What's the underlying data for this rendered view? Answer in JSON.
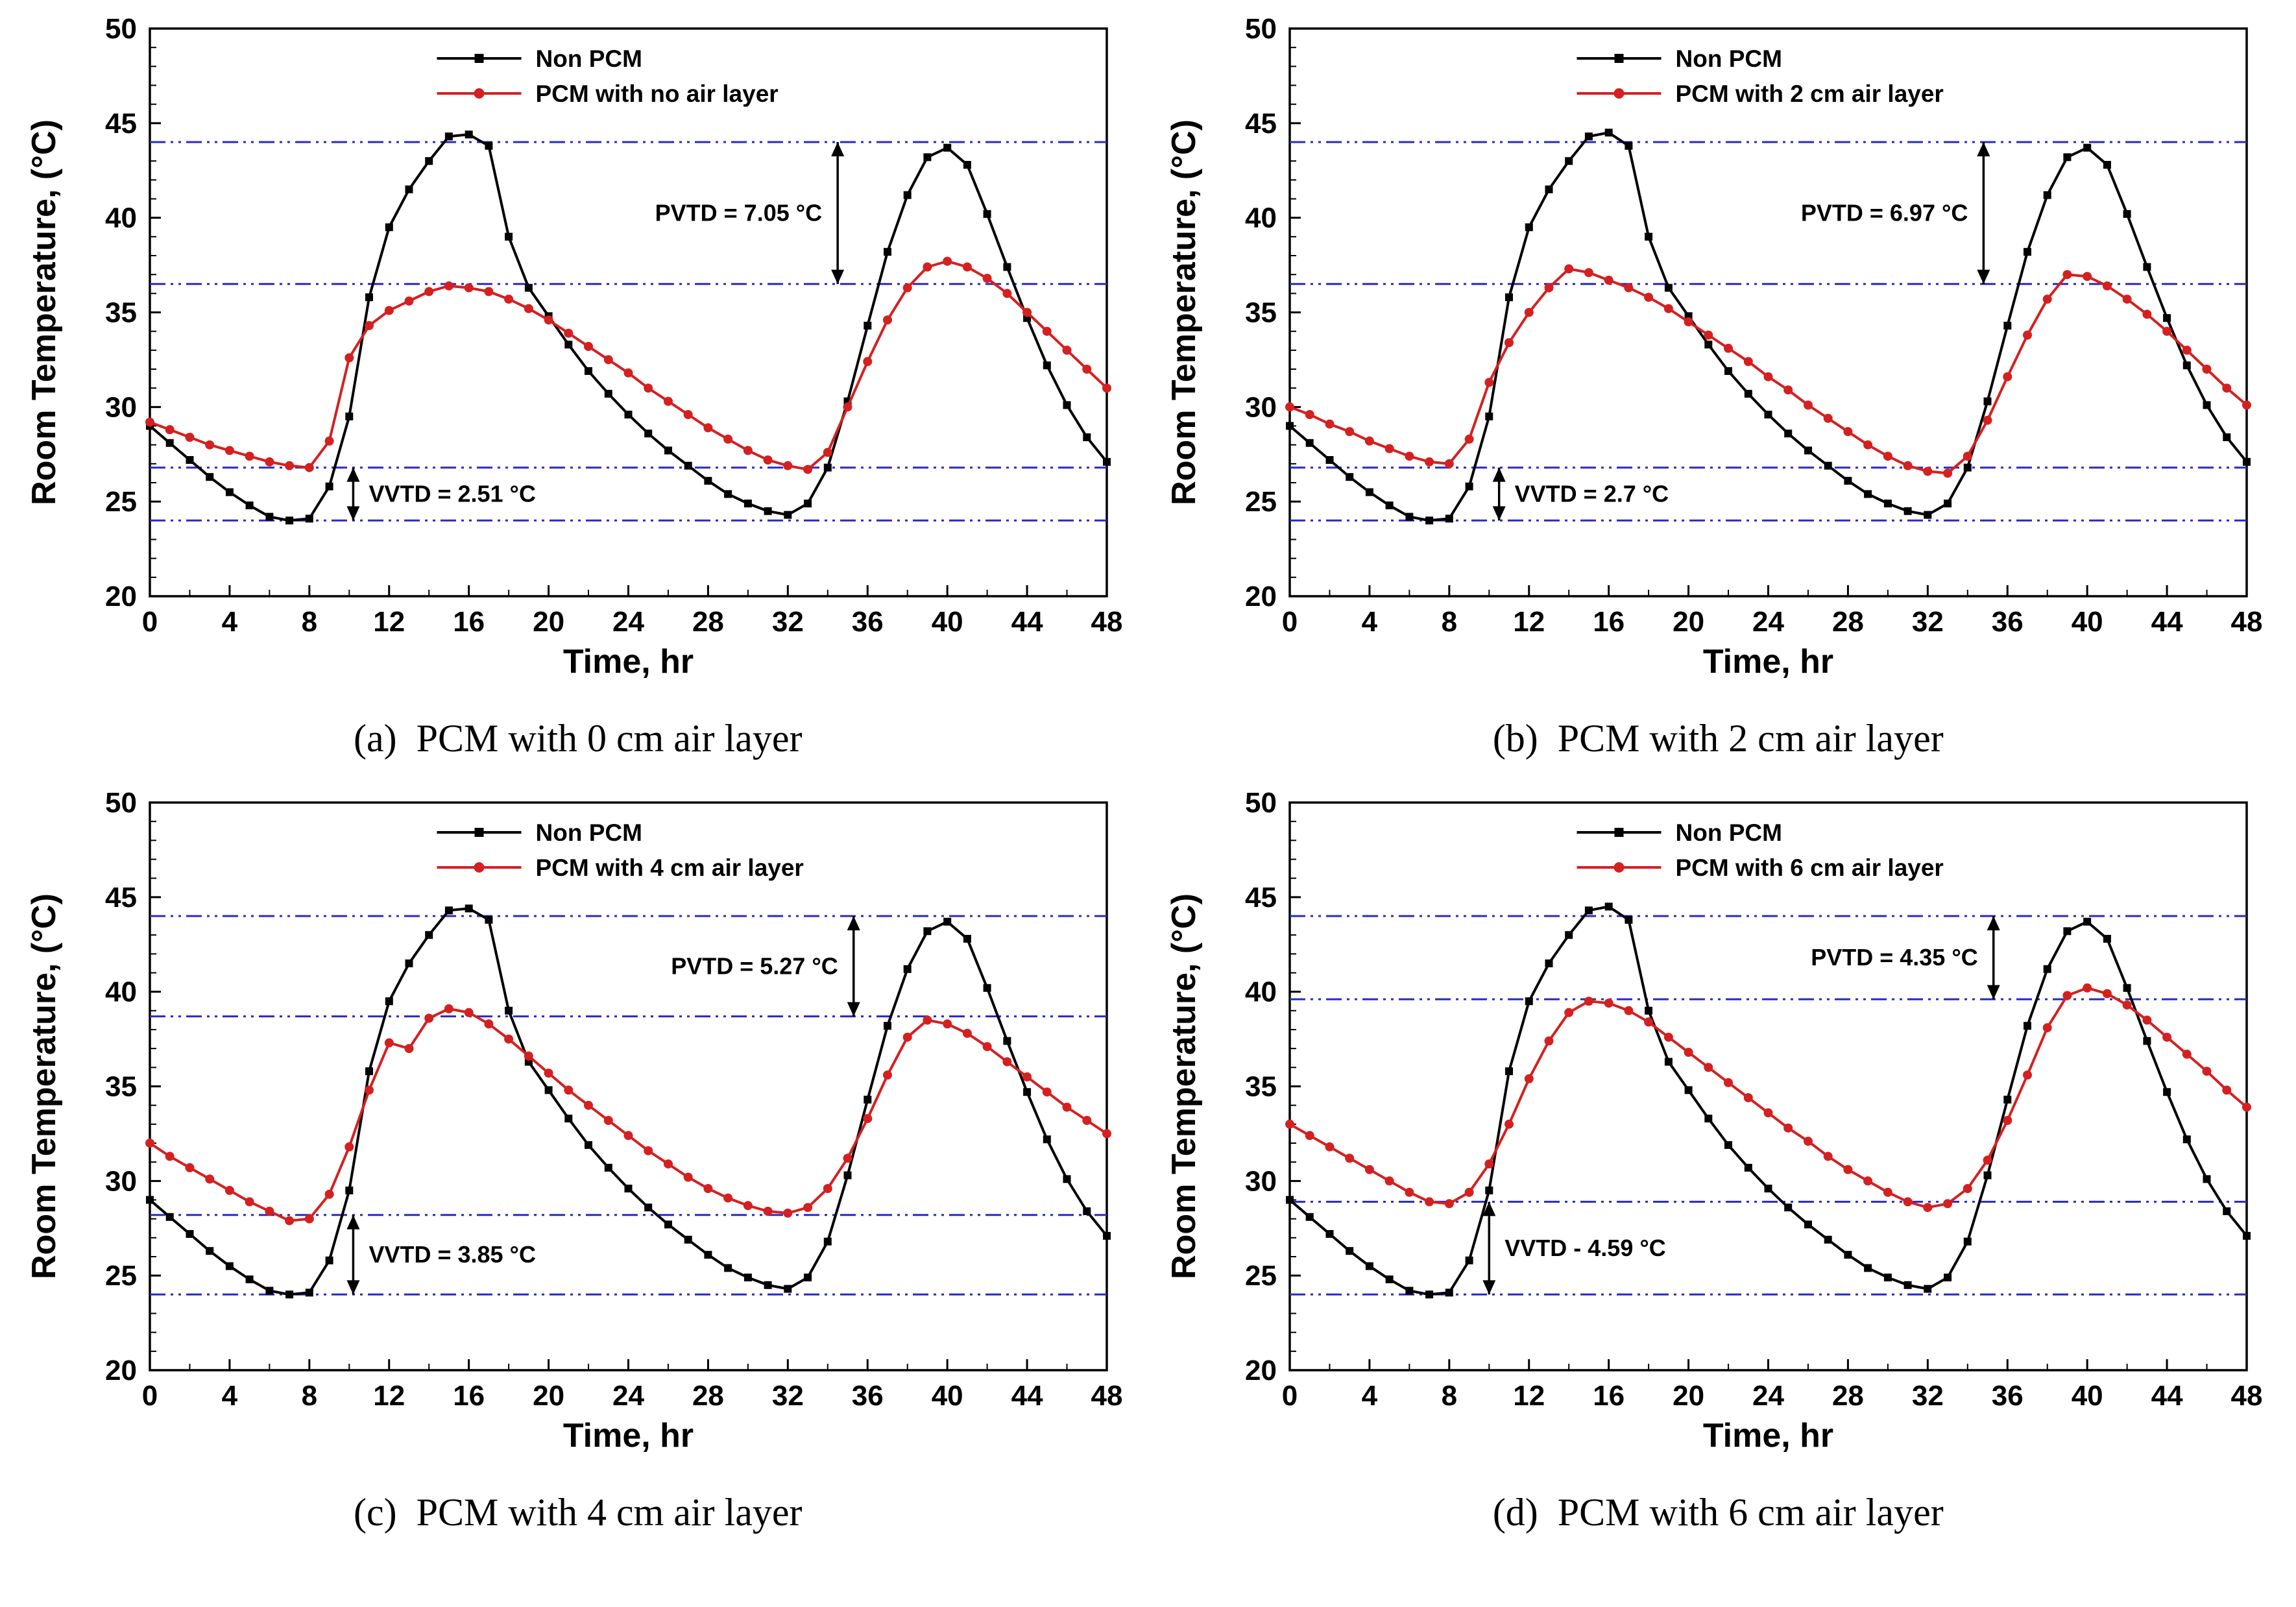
{
  "page": {
    "background": "#ffffff"
  },
  "chart_data": [
    {
      "type": "line",
      "caption": "(a)  PCM with 0 cm air layer",
      "xlabel": "Time, hr",
      "ylabel": "Room Temperature, (°C)",
      "xlim": [
        0,
        48
      ],
      "ylim": [
        20,
        50
      ],
      "xticks_major": 4,
      "xticks_minor": 2,
      "yticks_major": 5,
      "yticks_minor": 1,
      "legend_position": "top-center",
      "grid": false,
      "colors": {
        "non_pcm": "#000000",
        "pcm": "#d42020",
        "reference": "#2929c8"
      },
      "x_step": 1,
      "series": [
        {
          "name": "Non PCM",
          "marker": "square",
          "color": "#000000",
          "values": [
            29.0,
            28.1,
            27.2,
            26.3,
            25.5,
            24.8,
            24.2,
            24.0,
            24.1,
            25.8,
            29.5,
            35.8,
            39.5,
            41.5,
            43.0,
            44.3,
            44.4,
            43.8,
            39.0,
            36.3,
            34.8,
            33.3,
            31.9,
            30.7,
            29.6,
            28.6,
            27.7,
            26.9,
            26.1,
            25.4,
            24.9,
            24.5,
            24.3,
            24.9,
            26.8,
            30.3,
            34.3,
            38.2,
            41.2,
            43.2,
            43.7,
            42.8,
            40.2,
            37.4,
            34.7,
            32.2,
            30.1,
            28.4,
            27.1
          ]
        },
        {
          "name": "PCM with no air layer",
          "marker": "circle",
          "color": "#d42020",
          "values": [
            29.2,
            28.8,
            28.4,
            28.0,
            27.7,
            27.4,
            27.1,
            26.9,
            26.8,
            28.2,
            32.6,
            34.3,
            35.1,
            35.6,
            36.1,
            36.4,
            36.3,
            36.1,
            35.7,
            35.2,
            34.6,
            33.9,
            33.2,
            32.5,
            31.8,
            31.0,
            30.3,
            29.6,
            28.9,
            28.3,
            27.7,
            27.2,
            26.9,
            26.7,
            27.6,
            30.0,
            32.4,
            34.6,
            36.3,
            37.4,
            37.7,
            37.4,
            36.8,
            36.0,
            35.0,
            34.0,
            33.0,
            32.0,
            31.0
          ]
        }
      ],
      "reference_lines": [
        44.0,
        36.5,
        26.8,
        24.0
      ],
      "annotations": [
        {
          "id": "pvtd",
          "label": "PVTD = 7.05 °C",
          "arrow_x": 34.5,
          "y_from": 36.5,
          "y_to": 44.0,
          "label_side": "left"
        },
        {
          "id": "vvtd",
          "label": "VVTD = 2.51 °C",
          "arrow_x": 10.2,
          "y_from": 24.0,
          "y_to": 26.8,
          "label_side": "right"
        }
      ]
    },
    {
      "type": "line",
      "caption": "(b)  PCM with 2 cm air layer",
      "xlabel": "Time, hr",
      "ylabel": "Room Temperature, (°C)",
      "xlim": [
        0,
        48
      ],
      "ylim": [
        20,
        50
      ],
      "xticks_major": 4,
      "xticks_minor": 2,
      "yticks_major": 5,
      "yticks_minor": 1,
      "legend_position": "top-center",
      "grid": false,
      "colors": {
        "non_pcm": "#000000",
        "pcm": "#d42020",
        "reference": "#2929c8"
      },
      "x_step": 1,
      "series": [
        {
          "name": "Non PCM",
          "marker": "square",
          "color": "#000000",
          "values": [
            29.0,
            28.1,
            27.2,
            26.3,
            25.5,
            24.8,
            24.2,
            24.0,
            24.1,
            25.8,
            29.5,
            35.8,
            39.5,
            41.5,
            43.0,
            44.3,
            44.5,
            43.8,
            39.0,
            36.3,
            34.8,
            33.3,
            31.9,
            30.7,
            29.6,
            28.6,
            27.7,
            26.9,
            26.1,
            25.4,
            24.9,
            24.5,
            24.3,
            24.9,
            26.8,
            30.3,
            34.3,
            38.2,
            41.2,
            43.2,
            43.7,
            42.8,
            40.2,
            37.4,
            34.7,
            32.2,
            30.1,
            28.4,
            27.1
          ]
        },
        {
          "name": "PCM with 2 cm air layer",
          "marker": "circle",
          "color": "#d42020",
          "values": [
            30.0,
            29.6,
            29.1,
            28.7,
            28.2,
            27.8,
            27.4,
            27.1,
            27.0,
            28.3,
            31.3,
            33.4,
            35.0,
            36.3,
            37.3,
            37.1,
            36.7,
            36.3,
            35.8,
            35.2,
            34.5,
            33.8,
            33.1,
            32.4,
            31.6,
            30.9,
            30.1,
            29.4,
            28.7,
            28.0,
            27.4,
            26.9,
            26.6,
            26.5,
            27.4,
            29.3,
            31.6,
            33.8,
            35.7,
            37.0,
            36.9,
            36.4,
            35.7,
            34.9,
            34.0,
            33.0,
            32.0,
            31.0,
            30.1
          ]
        }
      ],
      "reference_lines": [
        44.0,
        36.5,
        26.8,
        24.0
      ],
      "annotations": [
        {
          "id": "pvtd",
          "label": "PVTD = 6.97 °C",
          "arrow_x": 34.8,
          "y_from": 36.5,
          "y_to": 44.0,
          "label_side": "left"
        },
        {
          "id": "vvtd",
          "label": "VVTD = 2.7 °C",
          "arrow_x": 10.5,
          "y_from": 24.0,
          "y_to": 26.8,
          "label_side": "right"
        }
      ]
    },
    {
      "type": "line",
      "caption": "(c)  PCM with 4 cm air layer",
      "xlabel": "Time, hr",
      "ylabel": "Room Temperature, (°C)",
      "xlim": [
        0,
        48
      ],
      "ylim": [
        20,
        50
      ],
      "xticks_major": 4,
      "xticks_minor": 2,
      "yticks_major": 5,
      "yticks_minor": 1,
      "legend_position": "top-center",
      "grid": false,
      "colors": {
        "non_pcm": "#000000",
        "pcm": "#d42020",
        "reference": "#2929c8"
      },
      "x_step": 1,
      "series": [
        {
          "name": "Non PCM",
          "marker": "square",
          "color": "#000000",
          "values": [
            29.0,
            28.1,
            27.2,
            26.3,
            25.5,
            24.8,
            24.2,
            24.0,
            24.1,
            25.8,
            29.5,
            35.8,
            39.5,
            41.5,
            43.0,
            44.3,
            44.4,
            43.8,
            39.0,
            36.3,
            34.8,
            33.3,
            31.9,
            30.7,
            29.6,
            28.6,
            27.7,
            26.9,
            26.1,
            25.4,
            24.9,
            24.5,
            24.3,
            24.9,
            26.8,
            30.3,
            34.3,
            38.2,
            41.2,
            43.2,
            43.7,
            42.8,
            40.2,
            37.4,
            34.7,
            32.2,
            30.1,
            28.4,
            27.1
          ]
        },
        {
          "name": "PCM with 4 cm air layer",
          "marker": "circle",
          "color": "#d42020",
          "values": [
            32.0,
            31.3,
            30.7,
            30.1,
            29.5,
            28.9,
            28.4,
            27.9,
            28.0,
            29.3,
            31.8,
            34.8,
            37.3,
            37.0,
            38.6,
            39.1,
            38.9,
            38.3,
            37.5,
            36.6,
            35.7,
            34.8,
            34.0,
            33.2,
            32.4,
            31.6,
            30.9,
            30.2,
            29.6,
            29.1,
            28.7,
            28.4,
            28.3,
            28.6,
            29.6,
            31.2,
            33.3,
            35.6,
            37.6,
            38.5,
            38.3,
            37.8,
            37.1,
            36.3,
            35.5,
            34.7,
            33.9,
            33.2,
            32.5
          ]
        }
      ],
      "reference_lines": [
        44.0,
        38.7,
        28.2,
        24.0
      ],
      "annotations": [
        {
          "id": "pvtd",
          "label": "PVTD = 5.27 °C",
          "arrow_x": 35.3,
          "y_from": 38.7,
          "y_to": 44.0,
          "label_side": "left"
        },
        {
          "id": "vvtd",
          "label": "VVTD = 3.85 °C",
          "arrow_x": 10.2,
          "y_from": 24.0,
          "y_to": 28.2,
          "label_side": "right"
        }
      ]
    },
    {
      "type": "line",
      "caption": "(d)  PCM with 6 cm air layer",
      "xlabel": "Time, hr",
      "ylabel": "Room Temperature, (°C)",
      "xlim": [
        0,
        48
      ],
      "ylim": [
        20,
        50
      ],
      "xticks_major": 4,
      "xticks_minor": 2,
      "yticks_major": 5,
      "yticks_minor": 1,
      "legend_position": "top-center",
      "grid": false,
      "colors": {
        "non_pcm": "#000000",
        "pcm": "#d42020",
        "reference": "#2929c8"
      },
      "x_step": 1,
      "series": [
        {
          "name": "Non PCM",
          "marker": "square",
          "color": "#000000",
          "values": [
            29.0,
            28.1,
            27.2,
            26.3,
            25.5,
            24.8,
            24.2,
            24.0,
            24.1,
            25.8,
            29.5,
            35.8,
            39.5,
            41.5,
            43.0,
            44.3,
            44.5,
            43.8,
            39.0,
            36.3,
            34.8,
            33.3,
            31.9,
            30.7,
            29.6,
            28.6,
            27.7,
            26.9,
            26.1,
            25.4,
            24.9,
            24.5,
            24.3,
            24.9,
            26.8,
            30.3,
            34.3,
            38.2,
            41.2,
            43.2,
            43.7,
            42.8,
            40.2,
            37.4,
            34.7,
            32.2,
            30.1,
            28.4,
            27.1
          ]
        },
        {
          "name": "PCM with 6 cm air layer",
          "marker": "circle",
          "color": "#d42020",
          "values": [
            33.0,
            32.4,
            31.8,
            31.2,
            30.6,
            30.0,
            29.4,
            28.9,
            28.8,
            29.4,
            30.9,
            33.0,
            35.4,
            37.4,
            38.9,
            39.5,
            39.4,
            39.0,
            38.4,
            37.6,
            36.8,
            36.0,
            35.2,
            34.4,
            33.6,
            32.8,
            32.1,
            31.3,
            30.6,
            30.0,
            29.4,
            28.9,
            28.6,
            28.8,
            29.6,
            31.1,
            33.2,
            35.6,
            38.1,
            39.8,
            40.2,
            39.9,
            39.3,
            38.5,
            37.6,
            36.7,
            35.8,
            34.8,
            33.9
          ]
        }
      ],
      "reference_lines": [
        44.0,
        39.6,
        28.9,
        24.0
      ],
      "annotations": [
        {
          "id": "pvtd",
          "label": "PVTD = 4.35 °C",
          "arrow_x": 35.3,
          "y_from": 39.6,
          "y_to": 44.0,
          "label_side": "left"
        },
        {
          "id": "vvtd",
          "label": "VVTD - 4.59 °C",
          "arrow_x": 10.0,
          "y_from": 24.0,
          "y_to": 28.9,
          "label_side": "right"
        }
      ]
    }
  ]
}
